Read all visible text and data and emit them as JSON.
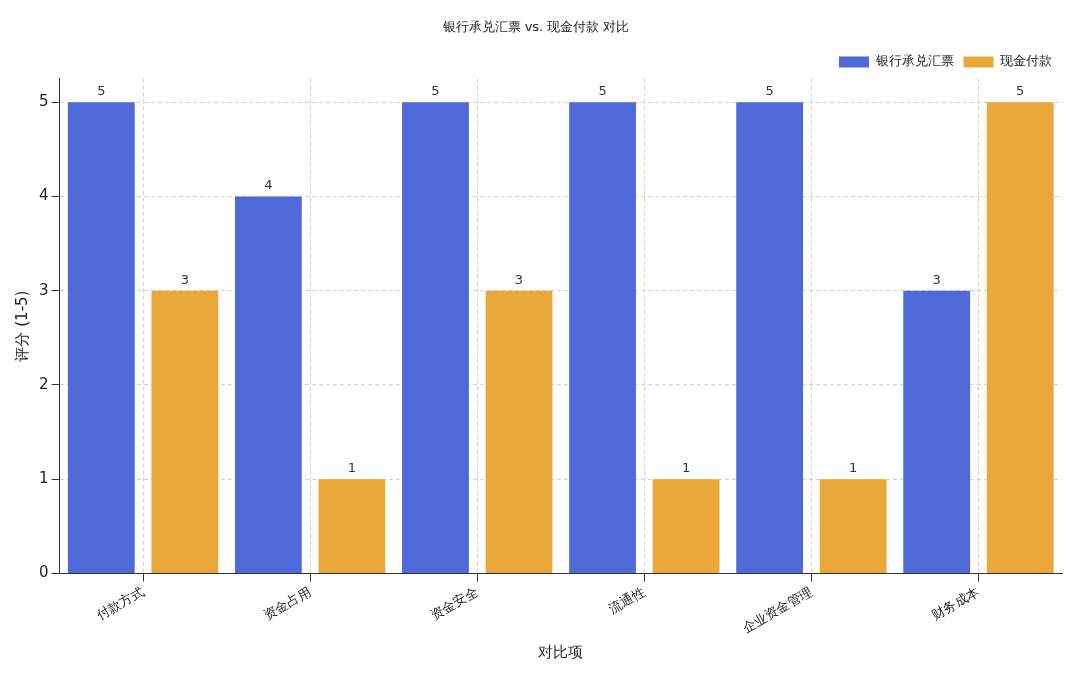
{
  "chart_data": {
    "type": "bar",
    "title": "银行承兑汇票 vs. 现金付款 对比",
    "xlabel": "对比项",
    "ylabel": "评分 (1-5)",
    "categories": [
      "付款方式",
      "资金占用",
      "资金安全",
      "流通性",
      "企业资金管理",
      "财务成本"
    ],
    "series": [
      {
        "name": "银行承兑汇票",
        "color": "#4f69d9",
        "values": [
          5,
          4,
          5,
          5,
          5,
          3
        ]
      },
      {
        "name": "现金付款",
        "color": "#eba83a",
        "values": [
          3,
          1,
          3,
          1,
          1,
          5
        ]
      }
    ],
    "ylim": [
      0,
      5.25
    ],
    "yticks": [
      0,
      1,
      2,
      3,
      4,
      5
    ],
    "grid": true,
    "legend": "top right",
    "data_labels": true
  }
}
